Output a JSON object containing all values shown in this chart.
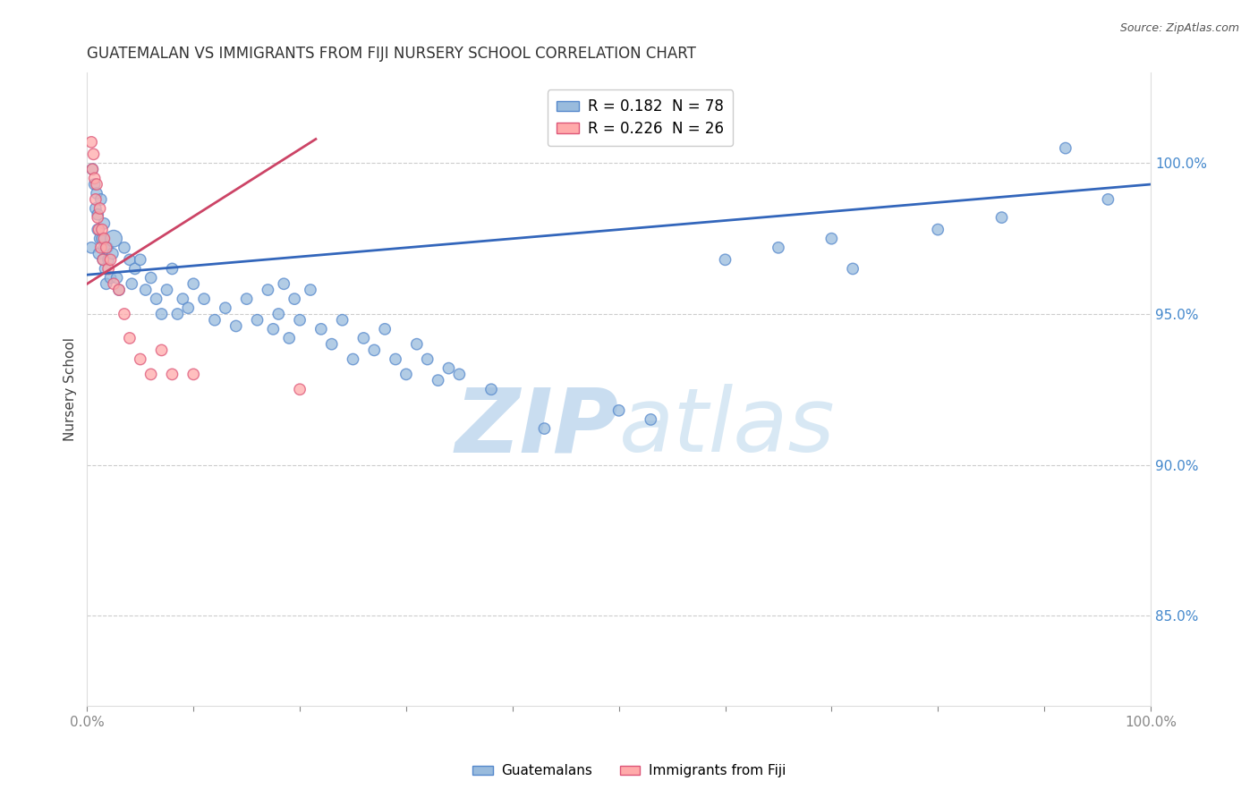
{
  "title": "GUATEMALAN VS IMMIGRANTS FROM FIJI NURSERY SCHOOL CORRELATION CHART",
  "source": "Source: ZipAtlas.com",
  "ylabel": "Nursery School",
  "legend_blue_r": "0.182",
  "legend_blue_n": "78",
  "legend_pink_r": "0.226",
  "legend_pink_n": "26",
  "legend_blue_label": "Guatemalans",
  "legend_pink_label": "Immigrants from Fiji",
  "xlim": [
    0.0,
    1.0
  ],
  "ylim": [
    0.82,
    1.03
  ],
  "blue_line_x": [
    0.0,
    1.0
  ],
  "blue_line_y": [
    0.963,
    0.993
  ],
  "pink_line_x": [
    0.0,
    0.215
  ],
  "pink_line_y": [
    0.96,
    1.008
  ],
  "blue_color": "#99BBDD",
  "pink_color": "#FFAAAA",
  "blue_edge_color": "#5588CC",
  "pink_edge_color": "#DD5577",
  "blue_line_color": "#3366BB",
  "pink_line_color": "#CC4466",
  "dot_size": 80,
  "watermark_text": "ZIPatlas",
  "watermark_color": "#D8E8F5",
  "title_fontsize": 12,
  "axis_label_color": "#4488CC",
  "tick_color": "#4488CC",
  "grid_color": "#CCCCCC",
  "background_color": "#FFFFFF",
  "blue_x": [
    0.004,
    0.005,
    0.007,
    0.008,
    0.009,
    0.01,
    0.01,
    0.011,
    0.012,
    0.013,
    0.014,
    0.015,
    0.016,
    0.016,
    0.017,
    0.018,
    0.019,
    0.02,
    0.022,
    0.024,
    0.025,
    0.028,
    0.03,
    0.035,
    0.04,
    0.042,
    0.045,
    0.05,
    0.055,
    0.06,
    0.065,
    0.07,
    0.075,
    0.08,
    0.085,
    0.09,
    0.095,
    0.1,
    0.11,
    0.12,
    0.13,
    0.14,
    0.15,
    0.16,
    0.17,
    0.175,
    0.18,
    0.185,
    0.19,
    0.195,
    0.2,
    0.21,
    0.22,
    0.23,
    0.24,
    0.25,
    0.26,
    0.27,
    0.28,
    0.29,
    0.3,
    0.31,
    0.32,
    0.33,
    0.34,
    0.35,
    0.38,
    0.43,
    0.5,
    0.53,
    0.6,
    0.65,
    0.7,
    0.72,
    0.8,
    0.86,
    0.92,
    0.96
  ],
  "blue_y": [
    0.972,
    0.998,
    0.993,
    0.985,
    0.99,
    0.978,
    0.983,
    0.97,
    0.975,
    0.988,
    0.975,
    0.968,
    0.98,
    0.972,
    0.965,
    0.96,
    0.972,
    0.968,
    0.962,
    0.97,
    0.975,
    0.962,
    0.958,
    0.972,
    0.968,
    0.96,
    0.965,
    0.968,
    0.958,
    0.962,
    0.955,
    0.95,
    0.958,
    0.965,
    0.95,
    0.955,
    0.952,
    0.96,
    0.955,
    0.948,
    0.952,
    0.946,
    0.955,
    0.948,
    0.958,
    0.945,
    0.95,
    0.96,
    0.942,
    0.955,
    0.948,
    0.958,
    0.945,
    0.94,
    0.948,
    0.935,
    0.942,
    0.938,
    0.945,
    0.935,
    0.93,
    0.94,
    0.935,
    0.928,
    0.932,
    0.93,
    0.925,
    0.912,
    0.918,
    0.915,
    0.968,
    0.972,
    0.975,
    0.965,
    0.978,
    0.982,
    1.005,
    0.988
  ],
  "blue_sizes": [
    80,
    80,
    80,
    80,
    80,
    80,
    80,
    80,
    80,
    80,
    80,
    80,
    80,
    80,
    80,
    80,
    80,
    80,
    80,
    80,
    180,
    80,
    80,
    80,
    80,
    80,
    80,
    80,
    80,
    80,
    80,
    80,
    80,
    80,
    80,
    80,
    80,
    80,
    80,
    80,
    80,
    80,
    80,
    80,
    80,
    80,
    80,
    80,
    80,
    80,
    80,
    80,
    80,
    80,
    80,
    80,
    80,
    80,
    80,
    80,
    80,
    80,
    80,
    80,
    80,
    80,
    80,
    80,
    80,
    80,
    80,
    80,
    80,
    80,
    80,
    80,
    80,
    80
  ],
  "pink_x": [
    0.004,
    0.005,
    0.006,
    0.007,
    0.008,
    0.009,
    0.01,
    0.011,
    0.012,
    0.013,
    0.014,
    0.015,
    0.016,
    0.018,
    0.02,
    0.022,
    0.025,
    0.03,
    0.035,
    0.04,
    0.05,
    0.06,
    0.07,
    0.08,
    0.1,
    0.2
  ],
  "pink_y": [
    1.007,
    0.998,
    1.003,
    0.995,
    0.988,
    0.993,
    0.982,
    0.978,
    0.985,
    0.972,
    0.978,
    0.968,
    0.975,
    0.972,
    0.965,
    0.968,
    0.96,
    0.958,
    0.95,
    0.942,
    0.935,
    0.93,
    0.938,
    0.93,
    0.93,
    0.925
  ],
  "pink_sizes": [
    80,
    80,
    80,
    80,
    80,
    80,
    80,
    80,
    80,
    80,
    80,
    80,
    80,
    80,
    80,
    80,
    80,
    80,
    80,
    80,
    80,
    80,
    80,
    80,
    80,
    80
  ]
}
